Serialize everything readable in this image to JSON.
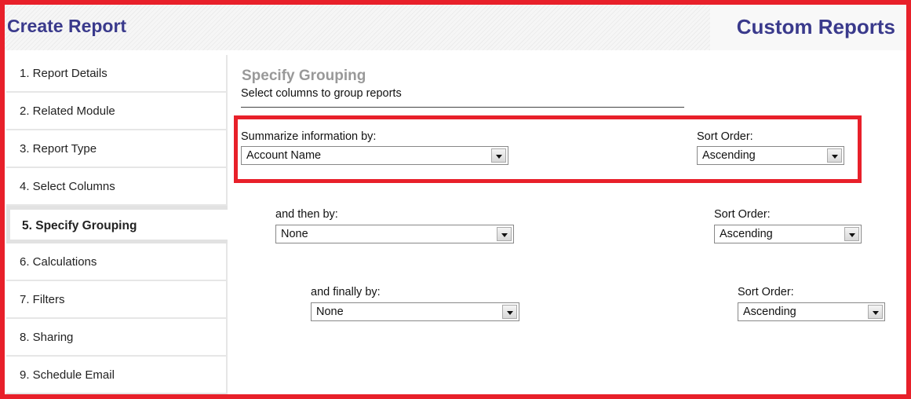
{
  "header": {
    "title": "Create Report",
    "module": "Custom Reports"
  },
  "sidebar": {
    "items": [
      {
        "label": "1. Report Details"
      },
      {
        "label": "2. Related Module"
      },
      {
        "label": "3. Report Type"
      },
      {
        "label": "4. Select Columns"
      },
      {
        "label": "5. Specify Grouping",
        "active": true
      },
      {
        "label": "6. Calculations"
      },
      {
        "label": "7. Filters"
      },
      {
        "label": "8. Sharing"
      },
      {
        "label": "9. Schedule Email"
      }
    ]
  },
  "main": {
    "title": "Specify Grouping",
    "subtitle": "Select columns to group reports",
    "groups": [
      {
        "label": "Summarize information by:",
        "value": "Account Name",
        "sort_label": "Sort Order:",
        "sort_value": "Ascending"
      },
      {
        "label": "and then by:",
        "value": "None",
        "sort_label": "Sort Order:",
        "sort_value": "Ascending"
      },
      {
        "label": "and finally by:",
        "value": "None",
        "sort_label": "Sort Order:",
        "sort_value": "Ascending"
      }
    ]
  },
  "colors": {
    "accent": "#3a3a8c",
    "highlight": "#e8202a"
  }
}
